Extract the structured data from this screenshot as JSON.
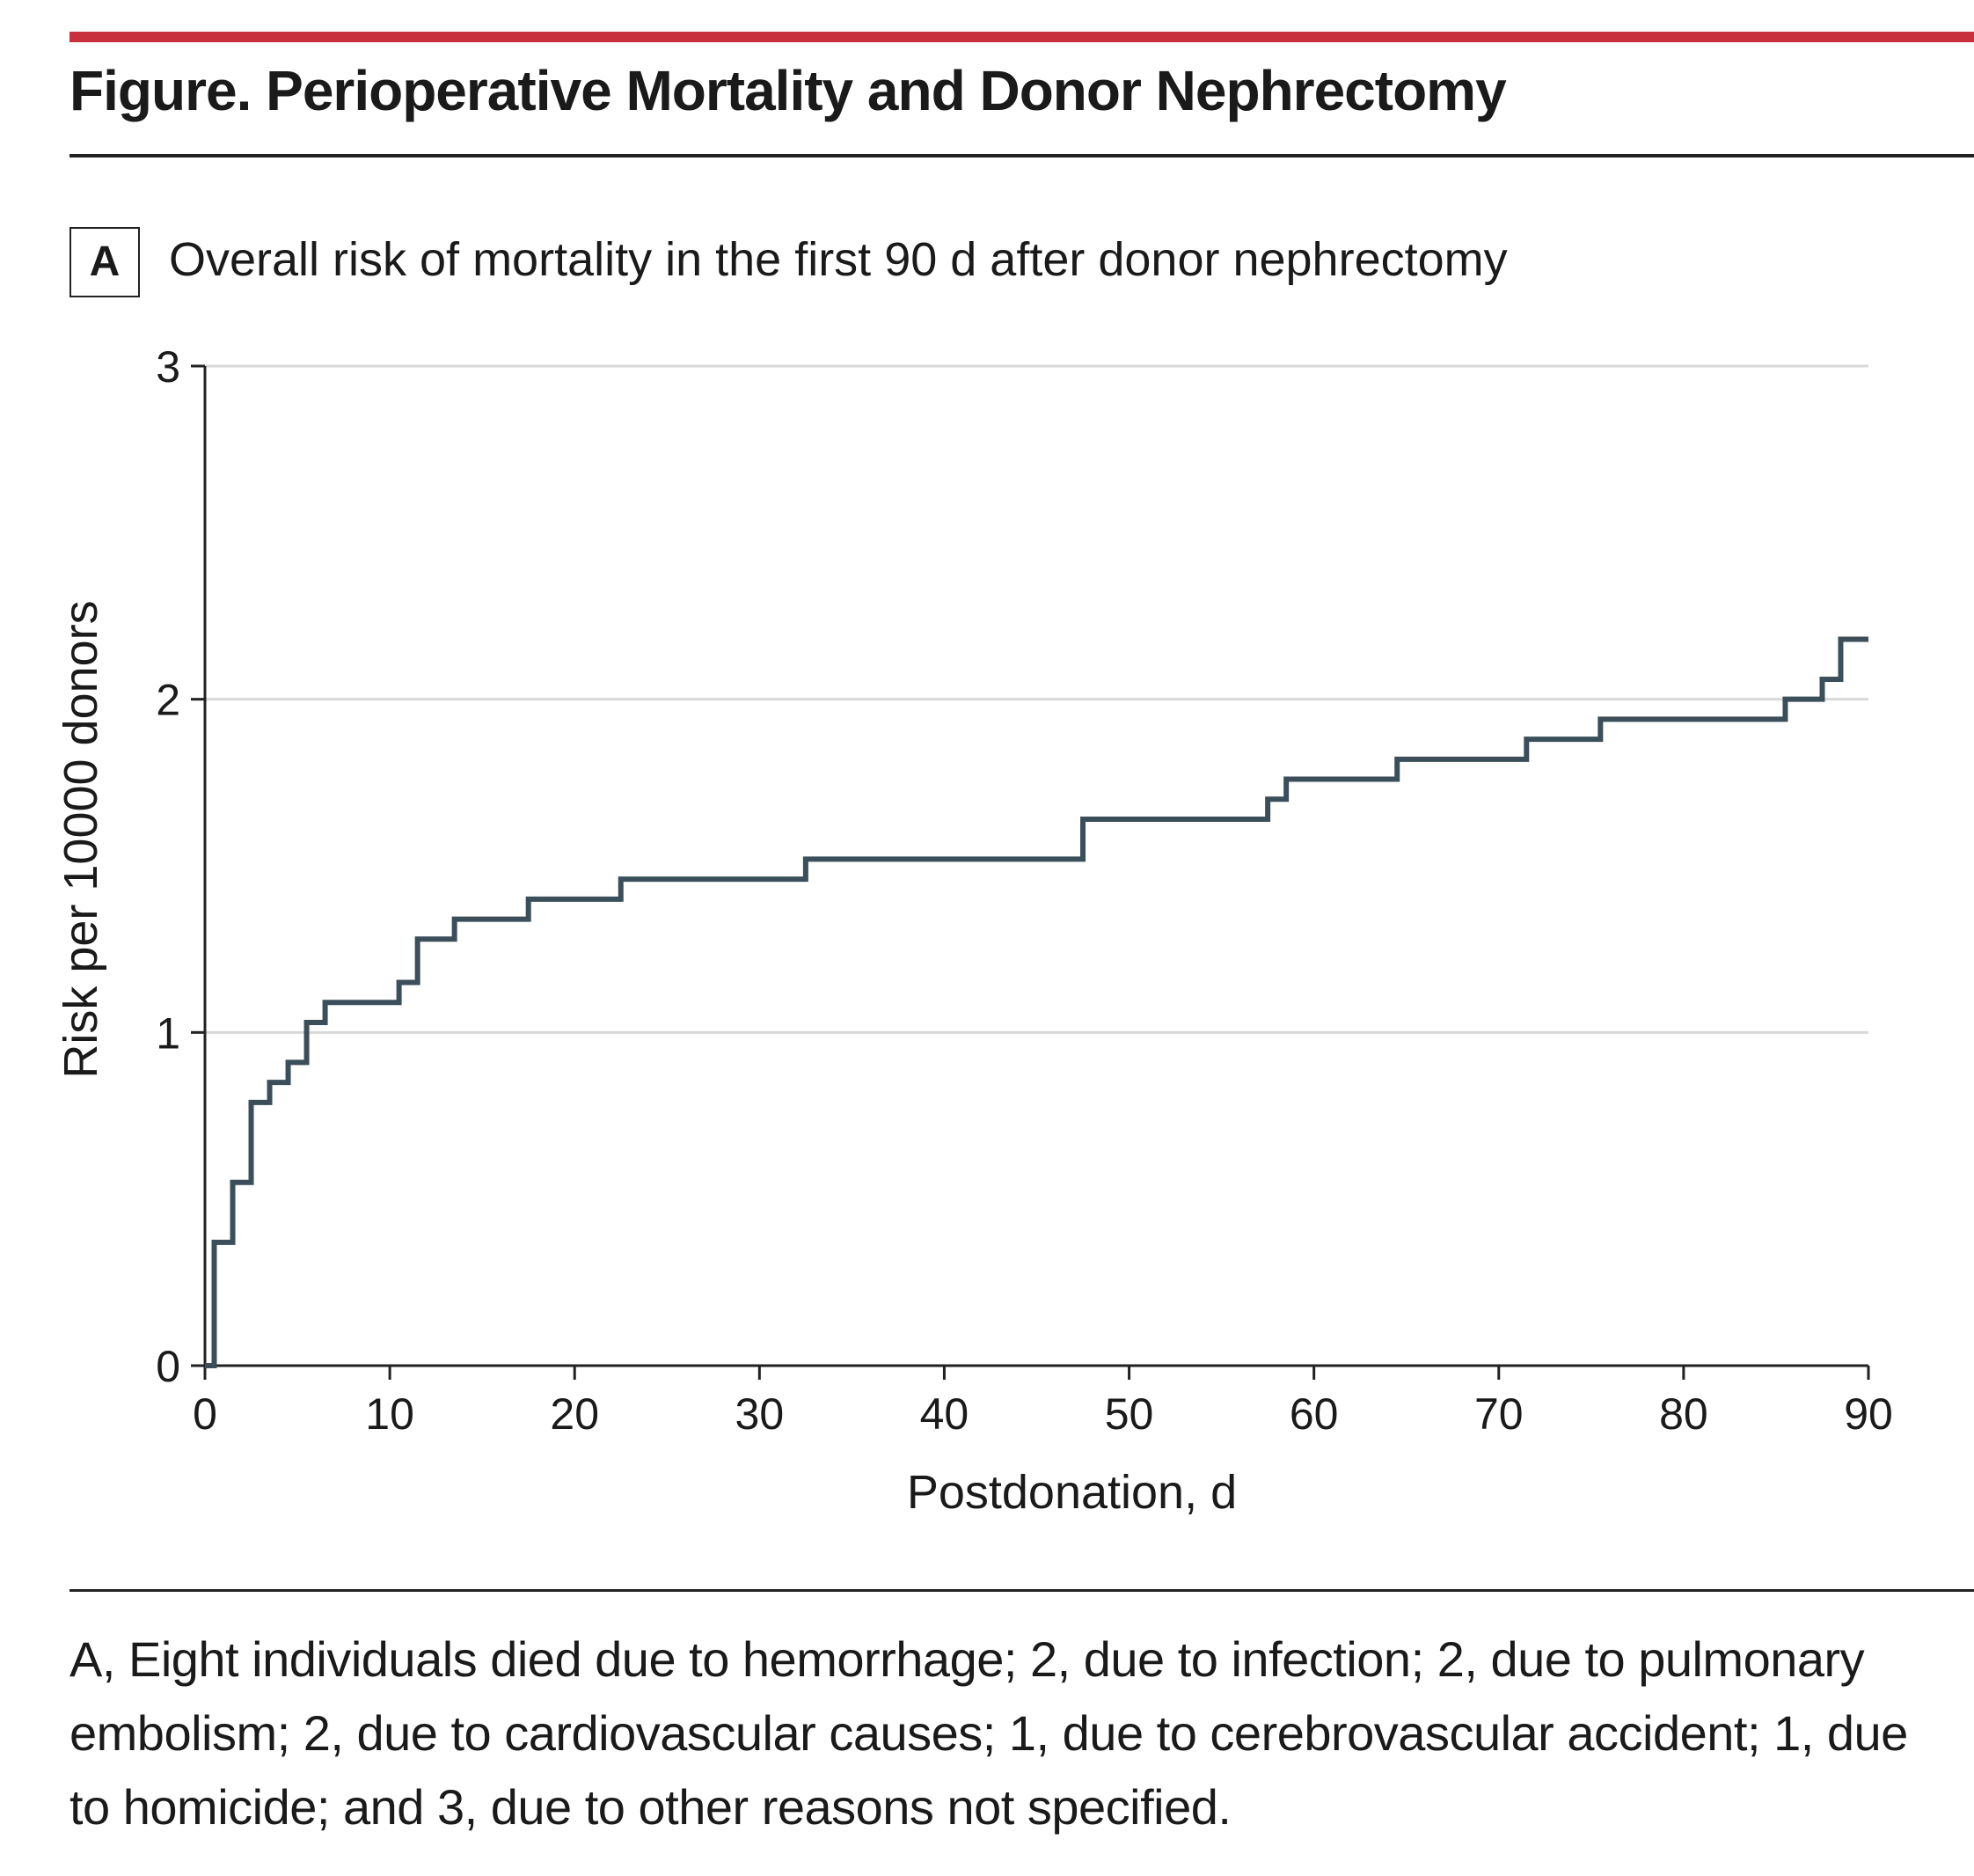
{
  "figure": {
    "title": "Figure. Perioperative Mortality and Donor Nephrectomy",
    "panel_label": "A",
    "panel_title": "Overall risk of mortality in the first 90 d after donor nephrectomy",
    "caption": "A, Eight individuals died due to hemorrhage; 2, due to infection; 2, due to pulmonary embolism; 2, due to cardiovascular causes; 1, due to cerebrovascular accident; 1, due to homicide; and 3, due to other reasons not specified."
  },
  "colors": {
    "accent_bar": "#c9303e",
    "series_line": "#3a4f5a",
    "gridline": "#d9d9d9"
  },
  "chart_data": {
    "type": "line",
    "step": true,
    "xlabel": "Postdonation, d",
    "ylabel": "Risk per 10000 donors",
    "xlim": [
      0,
      90
    ],
    "ylim": [
      0,
      3
    ],
    "xticks": [
      0,
      10,
      20,
      30,
      40,
      50,
      60,
      70,
      80,
      90
    ],
    "yticks": [
      0,
      1,
      2,
      3
    ],
    "grid": "horizontal",
    "series": [
      {
        "x": [
          0,
          0.5,
          1.5,
          2.5,
          3.5,
          4.5,
          5.5,
          6.5,
          10.5,
          11.5,
          13.5,
          17.5,
          22.5,
          32.5,
          47.5,
          57.5,
          58.5,
          64.5,
          71.5,
          75.5,
          85.5,
          87.5,
          88.5,
          90
        ],
        "y": [
          0,
          0.37,
          0.55,
          0.79,
          0.85,
          0.91,
          1.03,
          1.09,
          1.15,
          1.28,
          1.34,
          1.4,
          1.46,
          1.52,
          1.64,
          1.7,
          1.76,
          1.82,
          1.88,
          1.94,
          2.0,
          2.06,
          2.18,
          2.18
        ]
      }
    ]
  }
}
